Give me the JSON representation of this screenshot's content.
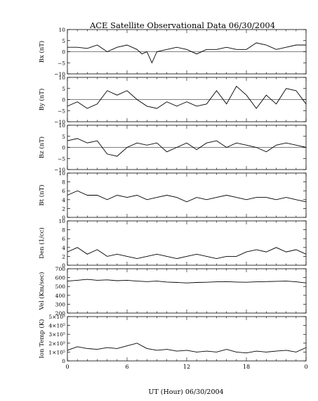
{
  "chart_data": {
    "type": "line",
    "title": "ACE Satellite Observational Data   06/30/2004",
    "xlabel": "UT (Hour)   06/30/2004",
    "x_ticks": [
      "0",
      "6",
      "12",
      "18",
      "0"
    ],
    "xlim": [
      0,
      24
    ],
    "grid": false,
    "panels": [
      {
        "ylabel": "Bx (nT)",
        "ylim": [
          -10,
          10
        ],
        "ticks": [
          "10",
          "5",
          "0",
          "−5",
          "−10"
        ],
        "zero_line": true,
        "series": {
          "x": [
            0,
            1,
            2,
            3,
            4,
            5,
            6,
            7,
            7.5,
            8,
            8.5,
            9,
            10,
            11,
            12,
            13,
            14,
            15,
            16,
            17,
            18,
            19,
            20,
            21,
            22,
            23,
            24
          ],
          "y": [
            2,
            2,
            1.5,
            3,
            0,
            2,
            3,
            1,
            -1,
            0,
            -5,
            0,
            1,
            2,
            1,
            -1,
            1,
            1,
            2,
            1,
            1,
            4,
            3,
            1,
            2,
            3,
            3
          ]
        }
      },
      {
        "ylabel": "By (nT)",
        "ylim": [
          -10,
          10
        ],
        "ticks": [
          "10",
          "5",
          "0",
          "−5",
          "−10"
        ],
        "zero_line": true,
        "series": {
          "x": [
            0,
            1,
            2,
            3,
            4,
            5,
            6,
            7,
            8,
            9,
            10,
            11,
            12,
            13,
            14,
            15,
            16,
            17,
            18,
            19,
            20,
            21,
            22,
            23,
            24
          ],
          "y": [
            -3,
            -1,
            -4,
            -2,
            4,
            2,
            4,
            0,
            -3,
            -4,
            -1,
            -3,
            -1,
            -3,
            -2,
            4,
            -2,
            6,
            2,
            -4,
            2,
            -2,
            5,
            4,
            -2
          ]
        }
      },
      {
        "ylabel": "Bz (nT)",
        "ylim": [
          -10,
          10
        ],
        "ticks": [
          "10",
          "5",
          "0",
          "−5",
          "−10"
        ],
        "zero_line": true,
        "series": {
          "x": [
            0,
            1,
            2,
            3,
            4,
            5,
            6,
            7,
            8,
            9,
            10,
            11,
            12,
            13,
            14,
            15,
            16,
            17,
            18,
            19,
            20,
            21,
            22,
            23,
            24
          ],
          "y": [
            3,
            4,
            2,
            3,
            -3,
            -4,
            0,
            2,
            1,
            2,
            -2,
            0,
            2,
            -1,
            2,
            3,
            0,
            2,
            1,
            0,
            -2,
            1,
            2,
            1,
            0
          ]
        }
      },
      {
        "ylabel": "Bt (nT)",
        "ylim": [
          0,
          10
        ],
        "ticks": [
          "10",
          "8",
          "6",
          "4",
          "2",
          "0"
        ],
        "zero_line": false,
        "series": {
          "x": [
            0,
            1,
            2,
            3,
            4,
            5,
            6,
            7,
            8,
            9,
            10,
            11,
            12,
            13,
            14,
            15,
            16,
            17,
            18,
            19,
            20,
            21,
            22,
            23,
            24
          ],
          "y": [
            5,
            6,
            5,
            5,
            4,
            5,
            4.5,
            5,
            4,
            4.5,
            5,
            4.5,
            3.5,
            4.5,
            4,
            4.5,
            5,
            4.5,
            4,
            4.5,
            4.5,
            4,
            4.5,
            4,
            3.5
          ]
        }
      },
      {
        "ylabel": "Den (1/cc)",
        "ylim": [
          0,
          10
        ],
        "ticks": [
          "10",
          "8",
          "6",
          "4",
          "2",
          "0"
        ],
        "zero_line": false,
        "series": {
          "x": [
            0,
            1,
            2,
            3,
            4,
            5,
            6,
            7,
            8,
            9,
            10,
            11,
            12,
            13,
            14,
            15,
            16,
            17,
            18,
            19,
            20,
            21,
            22,
            23,
            24
          ],
          "y": [
            3,
            4,
            2.5,
            3.5,
            2,
            2.5,
            2,
            1.5,
            2,
            2.5,
            2,
            1.5,
            2,
            2.5,
            2,
            1.5,
            2,
            2,
            3,
            3.5,
            3,
            4,
            3,
            3.5,
            2.5
          ]
        }
      },
      {
        "ylabel": "Vel (Km/sec)",
        "ylim": [
          200,
          700
        ],
        "ticks": [
          "700",
          "600",
          "500",
          "400",
          "300",
          "200"
        ],
        "zero_line": false,
        "series": {
          "x": [
            0,
            1,
            2,
            3,
            4,
            5,
            6,
            7,
            8,
            9,
            10,
            11,
            12,
            13,
            14,
            15,
            16,
            17,
            18,
            19,
            20,
            21,
            22,
            23,
            24
          ],
          "y": [
            560,
            570,
            580,
            570,
            575,
            565,
            570,
            560,
            555,
            560,
            550,
            545,
            540,
            545,
            548,
            552,
            555,
            550,
            548,
            552,
            555,
            558,
            560,
            552,
            540
          ]
        }
      },
      {
        "ylabel": "Ion Temp (K)",
        "ylim": [
          0,
          500000
        ],
        "ticks": [
          "5×10⁵",
          "4×10⁵",
          "3×10⁵",
          "2×10⁵",
          "1×10⁵",
          "0"
        ],
        "zero_line": false,
        "series": {
          "x": [
            0,
            1,
            2,
            3,
            4,
            5,
            6,
            7,
            8,
            9,
            10,
            11,
            12,
            13,
            14,
            15,
            16,
            17,
            18,
            19,
            20,
            21,
            22,
            23,
            24
          ],
          "y": [
            120000,
            160000,
            140000,
            130000,
            150000,
            140000,
            170000,
            200000,
            140000,
            120000,
            130000,
            110000,
            120000,
            100000,
            110000,
            100000,
            130000,
            100000,
            90000,
            110000,
            100000,
            110000,
            120000,
            100000,
            150000
          ]
        }
      }
    ]
  }
}
